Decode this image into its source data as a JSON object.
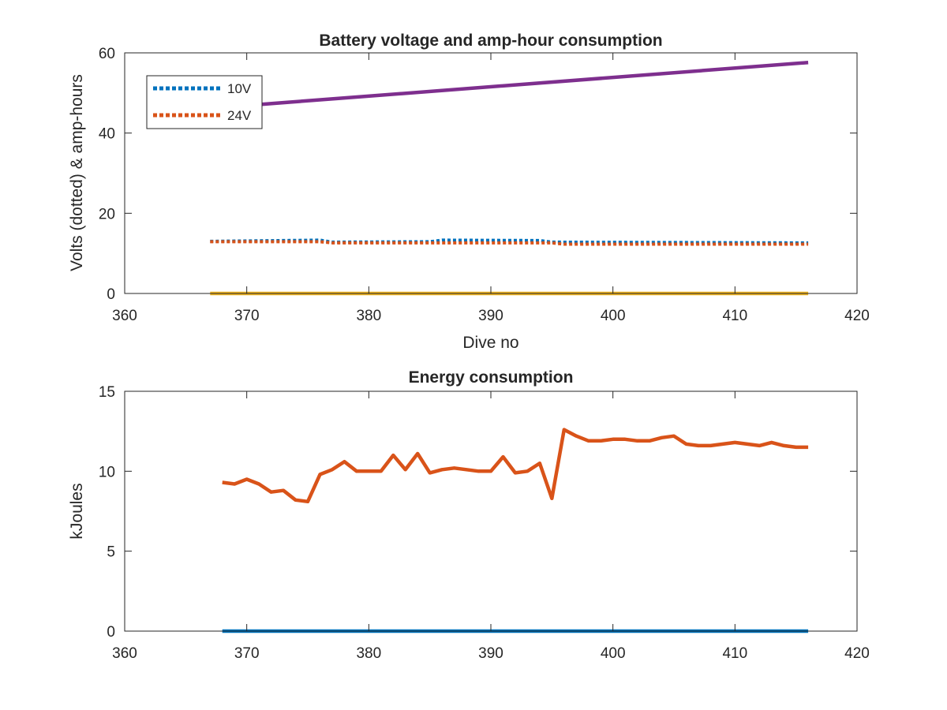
{
  "chart_data": [
    {
      "type": "line",
      "title": "Battery voltage and amp-hour consumption",
      "xlabel": "Dive no",
      "ylabel": "Volts (dotted) & amp-hours",
      "xlim": [
        360,
        420
      ],
      "ylim": [
        0,
        60
      ],
      "xticks": [
        "360",
        "370",
        "380",
        "390",
        "400",
        "410",
        "420"
      ],
      "yticks": [
        "0",
        "20",
        "40",
        "60"
      ],
      "legend": {
        "placement": "top-left",
        "entries": [
          "10V",
          "24V"
        ]
      },
      "series": [
        {
          "name": "10V",
          "color": "#0072BD",
          "style": "dotted",
          "x": [
            367,
            376,
            377,
            385,
            386,
            394,
            395,
            416
          ],
          "y": [
            13.0,
            13.3,
            12.8,
            12.9,
            13.3,
            13.2,
            12.8,
            12.6
          ]
        },
        {
          "name": "24V",
          "color": "#D95319",
          "style": "dotted",
          "x": [
            367,
            376,
            377,
            395,
            396,
            416
          ],
          "y": [
            12.9,
            12.9,
            12.6,
            12.6,
            12.3,
            12.3
          ]
        },
        {
          "color": "#EDB120",
          "style": "solid",
          "x": [
            367,
            416
          ],
          "y": [
            0,
            0
          ]
        },
        {
          "color": "#7E2F8E",
          "style": "solid",
          "x": [
            367,
            416
          ],
          "y": [
            46.2,
            57.6
          ]
        }
      ]
    },
    {
      "type": "line",
      "title": "Energy consumption",
      "xlabel": "",
      "ylabel": "kJoules",
      "xlim": [
        360,
        420
      ],
      "ylim": [
        0,
        15
      ],
      "xticks": [
        "360",
        "370",
        "380",
        "390",
        "400",
        "410",
        "420"
      ],
      "yticks": [
        "0",
        "5",
        "10",
        "15"
      ],
      "series": [
        {
          "color": "#0072BD",
          "style": "solid",
          "x": [
            368,
            416
          ],
          "y": [
            0,
            0
          ]
        },
        {
          "color": "#D95319",
          "style": "solid",
          "x": [
            368,
            369,
            370,
            371,
            372,
            373,
            374,
            375,
            376,
            377,
            378,
            379,
            380,
            381,
            382,
            383,
            384,
            385,
            386,
            387,
            388,
            389,
            390,
            391,
            392,
            393,
            394,
            395,
            396,
            397,
            398,
            399,
            400,
            401,
            402,
            403,
            404,
            405,
            406,
            407,
            408,
            409,
            410,
            411,
            412,
            413,
            414,
            415,
            416
          ],
          "y": [
            9.3,
            9.2,
            9.5,
            9.2,
            8.7,
            8.8,
            8.2,
            8.1,
            9.8,
            10.1,
            10.6,
            10.0,
            10.0,
            10.0,
            11.0,
            10.1,
            11.1,
            9.9,
            10.1,
            10.2,
            10.1,
            10.0,
            10.0,
            10.9,
            9.9,
            10.0,
            10.5,
            8.3,
            12.6,
            12.2,
            11.9,
            11.9,
            12.0,
            12.0,
            11.9,
            11.9,
            12.1,
            12.2,
            11.7,
            11.6,
            11.6,
            11.7,
            11.8,
            11.7,
            11.6,
            11.8,
            11.6,
            11.5,
            11.5
          ]
        }
      ]
    }
  ]
}
